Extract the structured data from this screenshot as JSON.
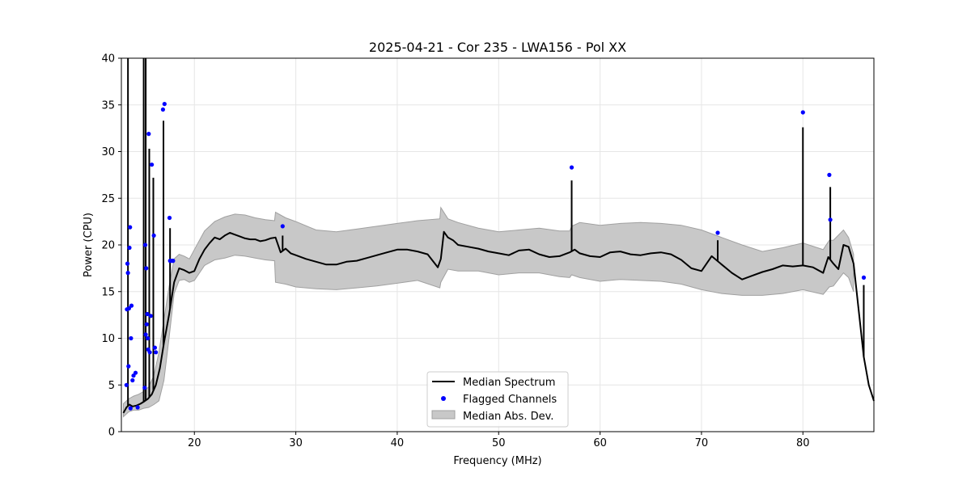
{
  "chart_data": {
    "type": "line",
    "title": "2025-04-21 - Cor 235 - LWA156 - Pol XX",
    "xlabel": "Frequency (MHz)",
    "ylabel": "Power (CPU)",
    "xlim": [
      12.8,
      87.0
    ],
    "ylim": [
      0,
      40
    ],
    "xticks": [
      20,
      30,
      40,
      50,
      60,
      70,
      80
    ],
    "yticks": [
      0,
      5,
      10,
      15,
      20,
      25,
      30,
      35,
      40
    ],
    "grid": true,
    "legend_position": "lower-center",
    "legend": [
      "Median Spectrum",
      "Flagged Channels",
      "Median Abs. Dev."
    ],
    "median_spectrum": {
      "name": "Median Spectrum",
      "x": [
        13.0,
        13.3,
        13.6,
        13.9,
        14.3,
        14.7,
        15.0,
        15.4,
        15.8,
        16.2,
        16.6,
        17.0,
        17.5,
        18.0,
        18.5,
        19.0,
        19.5,
        20.0,
        20.5,
        21.0,
        21.5,
        22.0,
        22.5,
        23.0,
        23.5,
        24.0,
        24.5,
        25.0,
        25.5,
        26.0,
        26.5,
        27.0,
        27.5,
        28.0,
        28.5,
        29.0,
        29.5,
        30.0,
        31.0,
        32.0,
        33.0,
        34.0,
        35.0,
        36.0,
        37.0,
        38.0,
        39.0,
        40.0,
        41.0,
        42.0,
        43.0,
        44.0,
        44.3,
        44.6,
        45.0,
        45.5,
        46.0,
        47.0,
        48.0,
        49.0,
        50.0,
        51.0,
        52.0,
        53.0,
        54.0,
        55.0,
        56.0,
        57.0,
        57.5,
        58.0,
        59.0,
        60.0,
        61.0,
        62.0,
        63.0,
        64.0,
        65.0,
        66.0,
        67.0,
        68.0,
        69.0,
        70.0,
        71.0,
        72.0,
        73.0,
        74.0,
        75.0,
        76.0,
        77.0,
        78.0,
        79.0,
        80.0,
        81.0,
        82.0,
        82.5,
        83.0,
        83.5,
        84.0,
        84.5,
        85.0,
        85.5,
        86.0,
        86.5,
        87.0
      ],
      "y": [
        2.0,
        2.6,
        2.9,
        2.7,
        2.8,
        3.0,
        3.2,
        3.5,
        4.0,
        5.0,
        6.8,
        9.5,
        12.5,
        16.0,
        17.5,
        17.3,
        17.0,
        17.2,
        18.5,
        19.5,
        20.2,
        20.8,
        20.6,
        21.0,
        21.3,
        21.1,
        20.9,
        20.7,
        20.6,
        20.6,
        20.4,
        20.5,
        20.7,
        20.8,
        19.2,
        19.6,
        19.1,
        18.9,
        18.5,
        18.2,
        17.9,
        17.9,
        18.2,
        18.3,
        18.6,
        18.9,
        19.2,
        19.5,
        19.5,
        19.3,
        19.0,
        17.6,
        18.5,
        21.4,
        20.8,
        20.5,
        20.0,
        19.8,
        19.6,
        19.3,
        19.1,
        18.9,
        19.4,
        19.5,
        19.0,
        18.7,
        18.8,
        19.2,
        19.5,
        19.1,
        18.8,
        18.7,
        19.2,
        19.3,
        19.0,
        18.9,
        19.1,
        19.2,
        19.0,
        18.4,
        17.5,
        17.2,
        18.8,
        17.9,
        17.0,
        16.3,
        16.7,
        17.1,
        17.4,
        17.8,
        17.7,
        17.8,
        17.6,
        17.0,
        18.7,
        18.0,
        17.4,
        20.0,
        19.8,
        18.0,
        13.0,
        8.0,
        5.0,
        3.3
      ]
    },
    "median_abs_dev": {
      "name": "Median Abs. Dev.",
      "x": [
        13.0,
        13.5,
        14.0,
        14.5,
        15.0,
        15.5,
        16.0,
        16.5,
        17.0,
        17.5,
        18.0,
        18.5,
        19.0,
        19.5,
        20.0,
        21.0,
        22.0,
        23.0,
        24.0,
        25.0,
        26.0,
        27.0,
        27.9,
        28.0,
        29.0,
        30.0,
        32.0,
        34.0,
        36.0,
        38.0,
        40.0,
        42.0,
        44.2,
        44.3,
        45.0,
        46.0,
        48.0,
        50.0,
        52.0,
        54.0,
        56.0,
        57.0,
        57.2,
        58.0,
        60.0,
        62.0,
        64.0,
        66.0,
        68.0,
        70.0,
        72.0,
        74.0,
        76.0,
        78.0,
        80.0,
        82.0,
        82.6,
        83.0,
        84.0,
        84.5,
        85.0
      ],
      "upper": [
        3.0,
        3.5,
        3.8,
        4.0,
        4.3,
        4.8,
        6.0,
        8.5,
        12.0,
        15.5,
        18.5,
        19.0,
        18.8,
        18.5,
        19.5,
        21.5,
        22.5,
        23.0,
        23.3,
        23.2,
        22.9,
        22.7,
        22.6,
        23.5,
        22.9,
        22.5,
        21.6,
        21.4,
        21.7,
        22.0,
        22.3,
        22.6,
        22.8,
        24.0,
        22.8,
        22.4,
        21.8,
        21.4,
        21.6,
        21.8,
        21.5,
        21.5,
        22.0,
        22.4,
        22.1,
        22.3,
        22.4,
        22.3,
        22.1,
        21.6,
        20.8,
        20.0,
        19.3,
        19.7,
        20.2,
        19.5,
        20.5,
        20.5,
        21.6,
        20.8,
        19.0
      ],
      "lower": [
        1.6,
        2.1,
        2.3,
        2.3,
        2.5,
        2.6,
        2.9,
        3.3,
        5.5,
        10.0,
        14.8,
        16.2,
        16.3,
        16.0,
        16.2,
        17.8,
        18.4,
        18.6,
        18.9,
        18.8,
        18.6,
        18.4,
        18.3,
        16.0,
        15.8,
        15.5,
        15.3,
        15.2,
        15.4,
        15.6,
        15.9,
        16.2,
        15.4,
        16.0,
        17.4,
        17.2,
        17.2,
        16.8,
        17.0,
        17.0,
        16.6,
        16.5,
        16.8,
        16.5,
        16.1,
        16.3,
        16.2,
        16.1,
        15.8,
        15.2,
        14.8,
        14.6,
        14.6,
        14.8,
        15.2,
        14.7,
        15.5,
        15.6,
        17.0,
        16.5,
        15.0
      ]
    },
    "spikes": [
      {
        "x": 13.45,
        "y": 40.0
      },
      {
        "x": 15.0,
        "y": 40.0
      },
      {
        "x": 15.2,
        "y": 40.0
      },
      {
        "x": 15.55,
        "y": 30.3
      },
      {
        "x": 15.95,
        "y": 27.2
      },
      {
        "x": 16.95,
        "y": 33.3
      },
      {
        "x": 17.6,
        "y": 21.8
      },
      {
        "x": 28.7,
        "y": 21.0
      },
      {
        "x": 57.2,
        "y": 26.9
      },
      {
        "x": 71.6,
        "y": 20.5
      },
      {
        "x": 80.0,
        "y": 32.6
      },
      {
        "x": 82.7,
        "y": 26.2
      },
      {
        "x": 86.0,
        "y": 15.7
      }
    ],
    "flagged_channels": {
      "name": "Flagged Channels",
      "x": [
        13.3,
        13.35,
        13.4,
        13.45,
        13.5,
        13.55,
        13.6,
        13.65,
        13.7,
        13.75,
        13.8,
        13.9,
        14.0,
        14.2,
        14.4,
        15.1,
        15.15,
        15.2,
        15.25,
        15.3,
        15.35,
        15.4,
        15.45,
        15.5,
        15.6,
        15.7,
        15.8,
        16.0,
        16.1,
        16.2,
        16.9,
        17.05,
        17.55,
        17.6,
        17.8,
        17.9,
        28.7,
        57.2,
        71.6,
        80.0,
        82.6,
        82.7,
        86.0
      ],
      "y": [
        5.0,
        13.1,
        18.0,
        17.0,
        7.0,
        13.2,
        19.7,
        21.9,
        2.5,
        10.0,
        13.5,
        5.5,
        6.0,
        6.3,
        2.6,
        4.7,
        20.0,
        10.4,
        17.5,
        11.5,
        12.6,
        10.0,
        8.8,
        31.9,
        8.5,
        12.4,
        28.6,
        21.0,
        9.0,
        8.5,
        34.5,
        35.1,
        22.9,
        18.3,
        18.3,
        18.3,
        22.0,
        28.3,
        21.3,
        34.2,
        27.5,
        22.7,
        16.5
      ]
    },
    "colors": {
      "line": "#000000",
      "flag": "#0000ff",
      "band_fill": "#c8c8c8",
      "band_edge": "#a0a0a0",
      "grid": "#e6e6e6"
    }
  }
}
